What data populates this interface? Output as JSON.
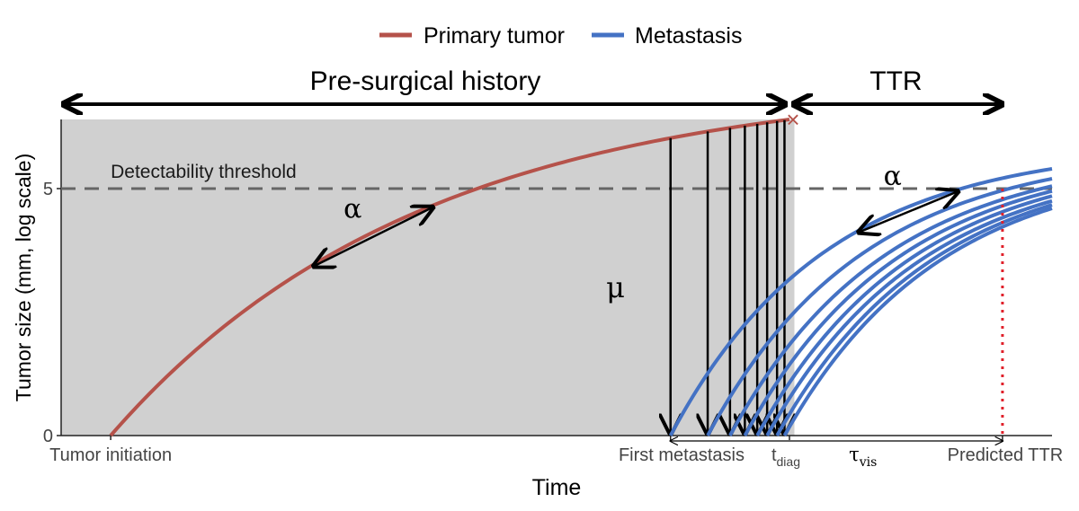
{
  "chart_data": {
    "type": "line",
    "legend": {
      "placement": "top",
      "entries": [
        {
          "name": "Primary tumor",
          "color": "#B5524A"
        },
        {
          "name": "Metastasis",
          "color": "#4472C4"
        }
      ]
    },
    "xlabel": "Time",
    "ylabel": "Tumor size (mm, log scale)",
    "yticks": [
      "0",
      "5"
    ],
    "xticks": {
      "initiation": "Tumor initiation",
      "first_metastasis": "First metastasis",
      "diag_main": "t",
      "diag_sub": "diag",
      "predicted": "Predicted TTR"
    },
    "tau": {
      "main": "τ",
      "sub": "vis"
    },
    "annotations": {
      "pre_surgical": "Pre-surgical history",
      "ttr": "TTR",
      "threshold": "Detectability threshold",
      "alpha": "α",
      "mu": "μ",
      "diagnosis_marker": "×"
    },
    "threshold_value": 5,
    "ylim": [
      0,
      6.4
    ],
    "xlim": [
      0,
      20
    ],
    "primary": {
      "t0": 1,
      "t_diag": 14.7,
      "y_end": 6.4,
      "k": 0.16
    },
    "metastasis_seed_times": [
      12.3,
      13.05,
      13.5,
      13.8,
      14.05,
      14.25,
      14.45,
      14.6
    ],
    "metastasis_end_time": 20,
    "metastasis_end_values": [
      5.4,
      5.2,
      5.05,
      4.95,
      4.85,
      4.75,
      4.67,
      4.6
    ],
    "predicted_ttr_time": 19.0,
    "colors": {
      "primary": "#B5524A",
      "metastasis": "#4472C4",
      "shade": "#D0D0D0",
      "threshold": "#666666",
      "predicted_line": "#E0202A"
    }
  }
}
